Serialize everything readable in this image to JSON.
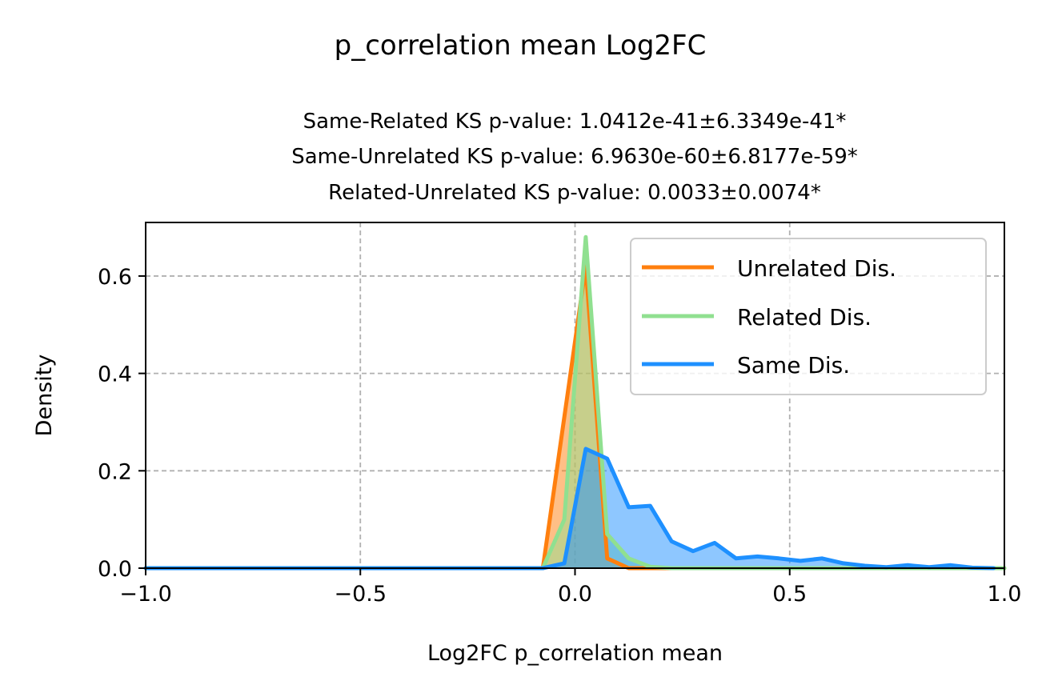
{
  "chart_data": {
    "type": "area",
    "suptitle": "p_correlation mean Log2FC",
    "subtitle_lines": [
      "Same-Related KS p-value: 1.0412e-41±6.3349e-41*",
      "Same-Unrelated KS p-value: 6.9630e-60±6.8177e-59*",
      "Related-Unrelated KS p-value: 0.0033±0.0074*"
    ],
    "xlabel": "Log2FC p_correlation mean",
    "ylabel": "Density",
    "xlim": [
      -1.0,
      1.0
    ],
    "ylim": [
      0.0,
      0.71
    ],
    "xticks": [
      -1.0,
      -0.5,
      0.0,
      0.5,
      1.0
    ],
    "xtick_labels": [
      "−1.0",
      "−0.5",
      "0.0",
      "0.5",
      "1.0"
    ],
    "yticks": [
      0.0,
      0.2,
      0.4,
      0.6
    ],
    "ytick_labels": [
      "0.0",
      "0.2",
      "0.4",
      "0.6"
    ],
    "grid": true,
    "legend_position": "upper right",
    "series": [
      {
        "name": "Unrelated Dis.",
        "color": "#ff7f0e",
        "fill_color": "#ff7f0e",
        "x": [
          -1.0,
          -0.075,
          0.025,
          0.075,
          0.125,
          1.0
        ],
        "y": [
          0.0,
          0.0,
          0.62,
          0.02,
          0.0,
          0.0
        ]
      },
      {
        "name": "Related Dis.",
        "color": "#90e090",
        "fill_color": "#90e090",
        "x": [
          -1.0,
          -0.075,
          -0.025,
          0.025,
          0.075,
          0.125,
          0.175,
          0.225,
          1.0
        ],
        "y": [
          0.0,
          0.0,
          0.1,
          0.68,
          0.07,
          0.02,
          0.003,
          0.0,
          0.0
        ]
      },
      {
        "name": "Same Dis.",
        "color": "#1e90ff",
        "fill_color": "#1e90ff",
        "x": [
          -1.0,
          -0.075,
          -0.025,
          0.025,
          0.075,
          0.125,
          0.175,
          0.225,
          0.275,
          0.325,
          0.375,
          0.425,
          0.475,
          0.525,
          0.575,
          0.625,
          0.675,
          0.725,
          0.775,
          0.825,
          0.875,
          0.925,
          0.975
        ],
        "y": [
          0.0,
          0.0,
          0.01,
          0.245,
          0.225,
          0.125,
          0.128,
          0.055,
          0.035,
          0.052,
          0.02,
          0.024,
          0.02,
          0.015,
          0.02,
          0.01,
          0.005,
          0.002,
          0.006,
          0.002,
          0.006,
          0.001,
          0.0
        ]
      }
    ]
  }
}
